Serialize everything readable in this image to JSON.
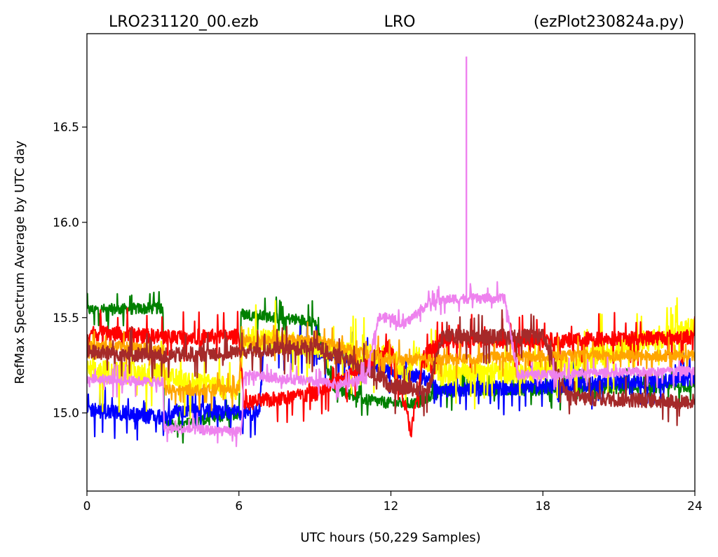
{
  "chart_data": {
    "type": "line",
    "title_left": "LRO231120_00.ezb",
    "title_center": "LRO",
    "title_right": "(ezPlot230824a.py)",
    "xlabel": "UTC hours  (50,229 Samples)",
    "ylabel": "RefMax Spectrum Average by UTC day",
    "xlim": [
      0,
      24
    ],
    "ylim": [
      14.59,
      16.99
    ],
    "xticks": [
      0,
      6,
      12,
      18,
      24
    ],
    "xtick_labels": [
      "0",
      "6",
      "12",
      "18",
      "24"
    ],
    "yticks": [
      15.0,
      15.5,
      16.0,
      16.5
    ],
    "ytick_labels": [
      "15.0",
      "15.5",
      "16.0",
      "16.5"
    ],
    "grid": false,
    "series": [
      {
        "color": "#008000",
        "noise": 0.03,
        "x": [
          0,
          3,
          3.05,
          3.5,
          6,
          6.1,
          9,
          9.7,
          10,
          11,
          12,
          13,
          14,
          18,
          24
        ],
        "y": [
          15.54,
          15.55,
          14.95,
          14.93,
          15.0,
          15.52,
          15.48,
          15.14,
          15.12,
          15.07,
          15.05,
          15.05,
          15.12,
          15.12,
          15.14
        ]
      },
      {
        "color": "#0000ff",
        "noise": 0.04,
        "x": [
          0,
          3.3,
          3.4,
          6.8,
          7,
          10,
          12,
          13.5,
          14,
          18,
          24
        ],
        "y": [
          15.02,
          14.97,
          15.01,
          15.0,
          15.38,
          15.3,
          15.22,
          15.18,
          15.12,
          15.14,
          15.18
        ]
      },
      {
        "color": "#ffff00",
        "noise": 0.06,
        "x": [
          0,
          3,
          3.1,
          6,
          6.2,
          9,
          11,
          12,
          12.6,
          13,
          14,
          18,
          24
        ],
        "y": [
          15.22,
          15.2,
          15.18,
          15.12,
          15.4,
          15.35,
          15.3,
          15.3,
          15.2,
          15.3,
          15.2,
          15.22,
          15.45
        ]
      },
      {
        "color": "#ff0000",
        "noise": 0.04,
        "x": [
          0,
          3,
          6,
          6.2,
          9,
          11,
          12,
          12.8,
          13.3,
          14,
          18,
          24
        ],
        "y": [
          15.42,
          15.4,
          15.4,
          15.05,
          15.1,
          15.25,
          15.35,
          14.9,
          15.3,
          15.38,
          15.38,
          15.4
        ]
      },
      {
        "color": "#ffa500",
        "noise": 0.03,
        "x": [
          0,
          3,
          3.1,
          6,
          6.1,
          9,
          12,
          14,
          18,
          24
        ],
        "y": [
          15.36,
          15.33,
          15.12,
          15.12,
          15.38,
          15.38,
          15.28,
          15.28,
          15.3,
          15.3
        ]
      },
      {
        "color": "#a52a2a",
        "noise": 0.04,
        "x": [
          0,
          3,
          6,
          9,
          11.5,
          12,
          13.5,
          14,
          18,
          19,
          24
        ],
        "y": [
          15.32,
          15.3,
          15.32,
          15.35,
          15.2,
          15.14,
          15.12,
          15.4,
          15.4,
          15.08,
          15.06
        ]
      },
      {
        "color": "#ee82ee",
        "noise": 0.025,
        "x": [
          0,
          3,
          3.05,
          6.1,
          6.2,
          10,
          11,
          11.5,
          12,
          12.5,
          13.5,
          14.5,
          16.5,
          17,
          24
        ],
        "y": [
          15.18,
          15.16,
          14.92,
          14.9,
          15.2,
          15.15,
          15.18,
          15.5,
          15.5,
          15.46,
          15.58,
          15.6,
          15.6,
          15.2,
          15.22
        ]
      }
    ],
    "spike": {
      "color": "#ee82ee",
      "x": 14.98,
      "y": 16.87,
      "base": 15.6
    }
  }
}
